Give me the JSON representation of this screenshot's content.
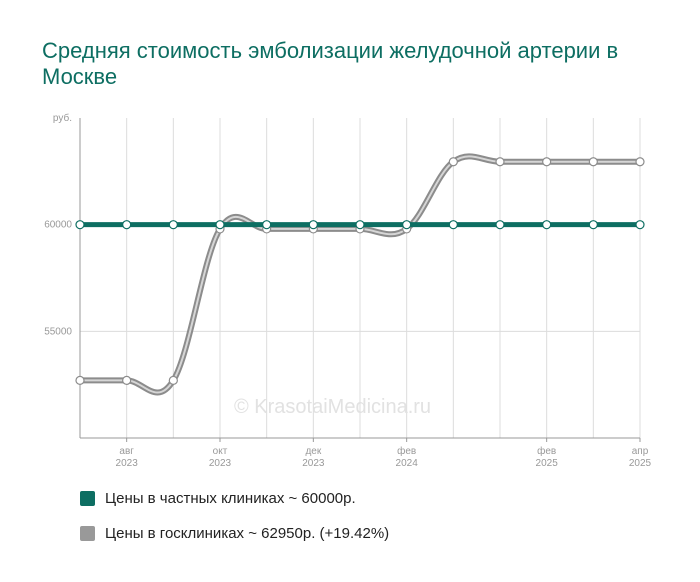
{
  "title": "Средняя стоимость эмболизации желудочной артерии в Москве",
  "watermark": "© KrasotaiMedicina.ru",
  "y_unit_label": "руб.",
  "legend": [
    {
      "label": "Цены в частных клиниках ~ 60000р.",
      "color": "#0d6e62"
    },
    {
      "label": "Цены в госклиниках ~ 62950р. (+19.42%)",
      "color": "#999999"
    }
  ],
  "chart_data": {
    "type": "line",
    "x": [
      "2023-06",
      "2023-08",
      "2023-09",
      "2023-10",
      "2023-11",
      "2023-12",
      "2024-01",
      "2024-02",
      "2024-03",
      "2025-01",
      "2025-02",
      "2025-03",
      "2025-04"
    ],
    "x_tick_labels": [
      {
        "x": "2023-08",
        "month": "авг",
        "year": "2023"
      },
      {
        "x": "2023-10",
        "month": "окт",
        "year": "2023"
      },
      {
        "x": "2023-12",
        "month": "дек",
        "year": "2023"
      },
      {
        "x": "2024-02",
        "month": "фев",
        "year": "2024"
      },
      {
        "x": "2025-02",
        "month": "фев",
        "year": "2025"
      },
      {
        "x": "2025-04",
        "month": "апр",
        "year": "2025"
      }
    ],
    "y_ticks": [
      55000,
      60000
    ],
    "ylim": [
      50000,
      65000
    ],
    "series": [
      {
        "name": "Цены в частных клиниках ~ 60000р.",
        "color": "#0d6e62",
        "values": [
          60000,
          60000,
          60000,
          60000,
          60000,
          60000,
          60000,
          60000,
          60000,
          60000,
          60000,
          60000,
          60000
        ]
      },
      {
        "name": "Цены в госклиниках ~ 62950р. (+19.42%)",
        "color": "#999999",
        "values": [
          52700,
          52700,
          52700,
          59800,
          59800,
          59800,
          59800,
          59800,
          62950,
          62950,
          62950,
          62950,
          62950
        ]
      }
    ],
    "grid": true
  }
}
